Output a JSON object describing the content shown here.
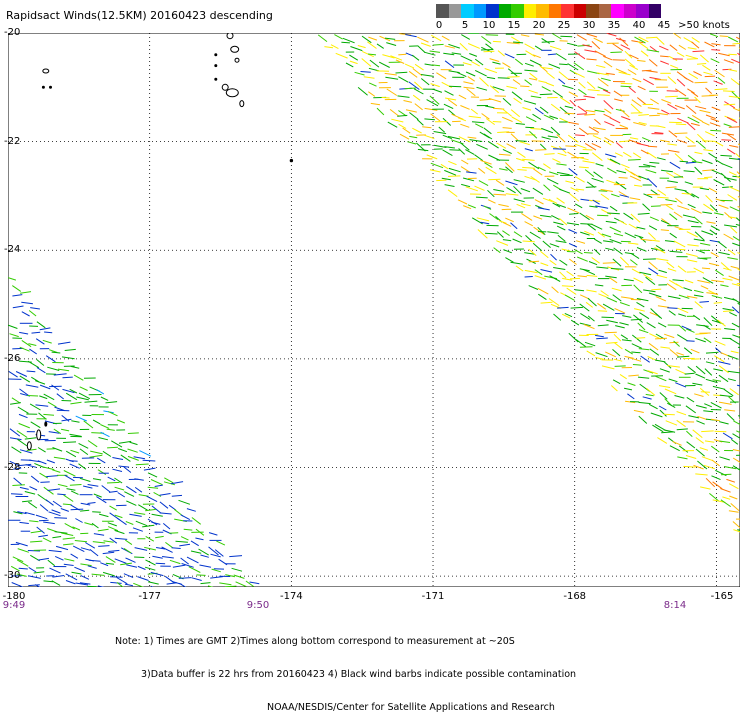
{
  "title": "Rapidsact Winds(12.5KM) 20160423 descending",
  "legend": {
    "colors": [
      "#555555",
      "#999999",
      "#00ccff",
      "#0099ff",
      "#0033cc",
      "#00aa00",
      "#33cc00",
      "#ffee00",
      "#ffbb00",
      "#ff7700",
      "#ff3333",
      "#cc0000",
      "#8b4513",
      "#aa6644",
      "#ff00ff",
      "#cc00cc",
      "#9900cc",
      "#330066"
    ],
    "labels": [
      "0",
      "5",
      "10",
      "15",
      "20",
      "25",
      "30",
      "35",
      "40",
      "45",
      ">50 knots"
    ]
  },
  "axes": {
    "y_labels": [
      "-20",
      "-22",
      "-24",
      "-26",
      "-28",
      "-30"
    ],
    "x_labels": [
      "-180",
      "-177",
      "-174",
      "-171",
      "-168",
      "-165"
    ],
    "x_range": [
      -180,
      -164.5
    ],
    "y_range": [
      -20,
      -30.2
    ]
  },
  "times": [
    "9:49",
    "9:50",
    "8:14"
  ],
  "notes": [
    "Note: 1) Times are GMT 2)Times along bottom correspond to measurement at ~20S",
    "3)Data buffer is 22 hrs from 20160423 4) Black wind barbs indicate possible contamination",
    "NOAA/NESDIS/Center for Satellite Applications and Research"
  ],
  "land": [
    {
      "name": "tonga-north-island",
      "lon": -179.2,
      "lat": -20.7
    },
    {
      "name": "haapai-islands",
      "lon": -175.3,
      "lat": -20.3
    },
    {
      "name": "tongatapu",
      "lon": -175.2,
      "lat": -21.2
    },
    {
      "name": "ata-island",
      "lon": -174.0,
      "lat": -22.8
    },
    {
      "name": "kermadec-islands",
      "lon": -179.4,
      "lat": -27.8
    }
  ],
  "swaths": {
    "east": {
      "polygon": [
        [
          -173.6,
          -20.0
        ],
        [
          -164.5,
          -20.0
        ],
        [
          -164.5,
          -29.3
        ]
      ],
      "dominant_speed_knots": "15-30"
    },
    "west": {
      "polygon": [
        [
          -180.0,
          -24.5
        ],
        [
          -180.0,
          -30.2
        ],
        [
          -174.8,
          -30.2
        ]
      ],
      "dominant_speed_knots": "10-20"
    }
  }
}
